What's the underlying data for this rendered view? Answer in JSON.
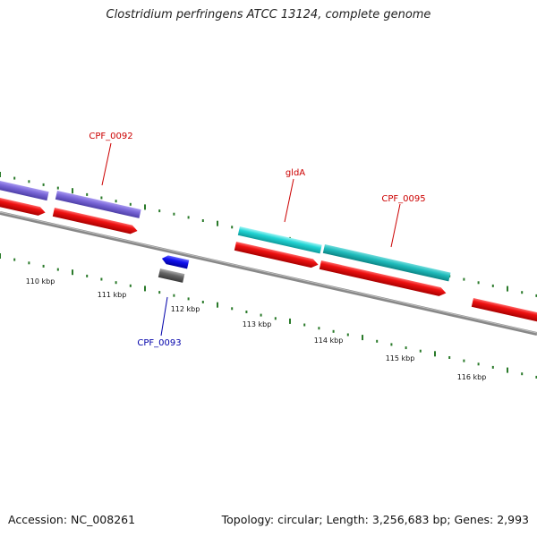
{
  "title": "Clostridium perfringens ATCC 13124, complete genome",
  "footer": {
    "accession": "Accession: NC_008261",
    "summary": "Topology: circular; Length: 3,256,683 bp; Genes: 2,993"
  },
  "ticks": [
    {
      "label": "110 kbp"
    },
    {
      "label": "111 kbp"
    },
    {
      "label": "112 kbp"
    },
    {
      "label": "113 kbp"
    },
    {
      "label": "114 kbp"
    },
    {
      "label": "115 kbp"
    },
    {
      "label": "116 kbp"
    }
  ],
  "gene_labels": [
    {
      "name": "CPF_0092",
      "color": "#cc0000"
    },
    {
      "name": "gldA",
      "color": "#cc0000"
    },
    {
      "name": "CPF_0095",
      "color": "#cc0000"
    },
    {
      "name": "CPF_0093",
      "color": "#0000aa"
    }
  ],
  "colors": {
    "cds": "#ee1111",
    "purple_feature": "#7b68d9",
    "cyan_feature": "#22d4d4",
    "teal_feature": "#20bcbc",
    "blue_feature": "#1111ee",
    "gray_feature": "#666666",
    "backbone": "#888888",
    "tick": "#2a7a2a"
  }
}
